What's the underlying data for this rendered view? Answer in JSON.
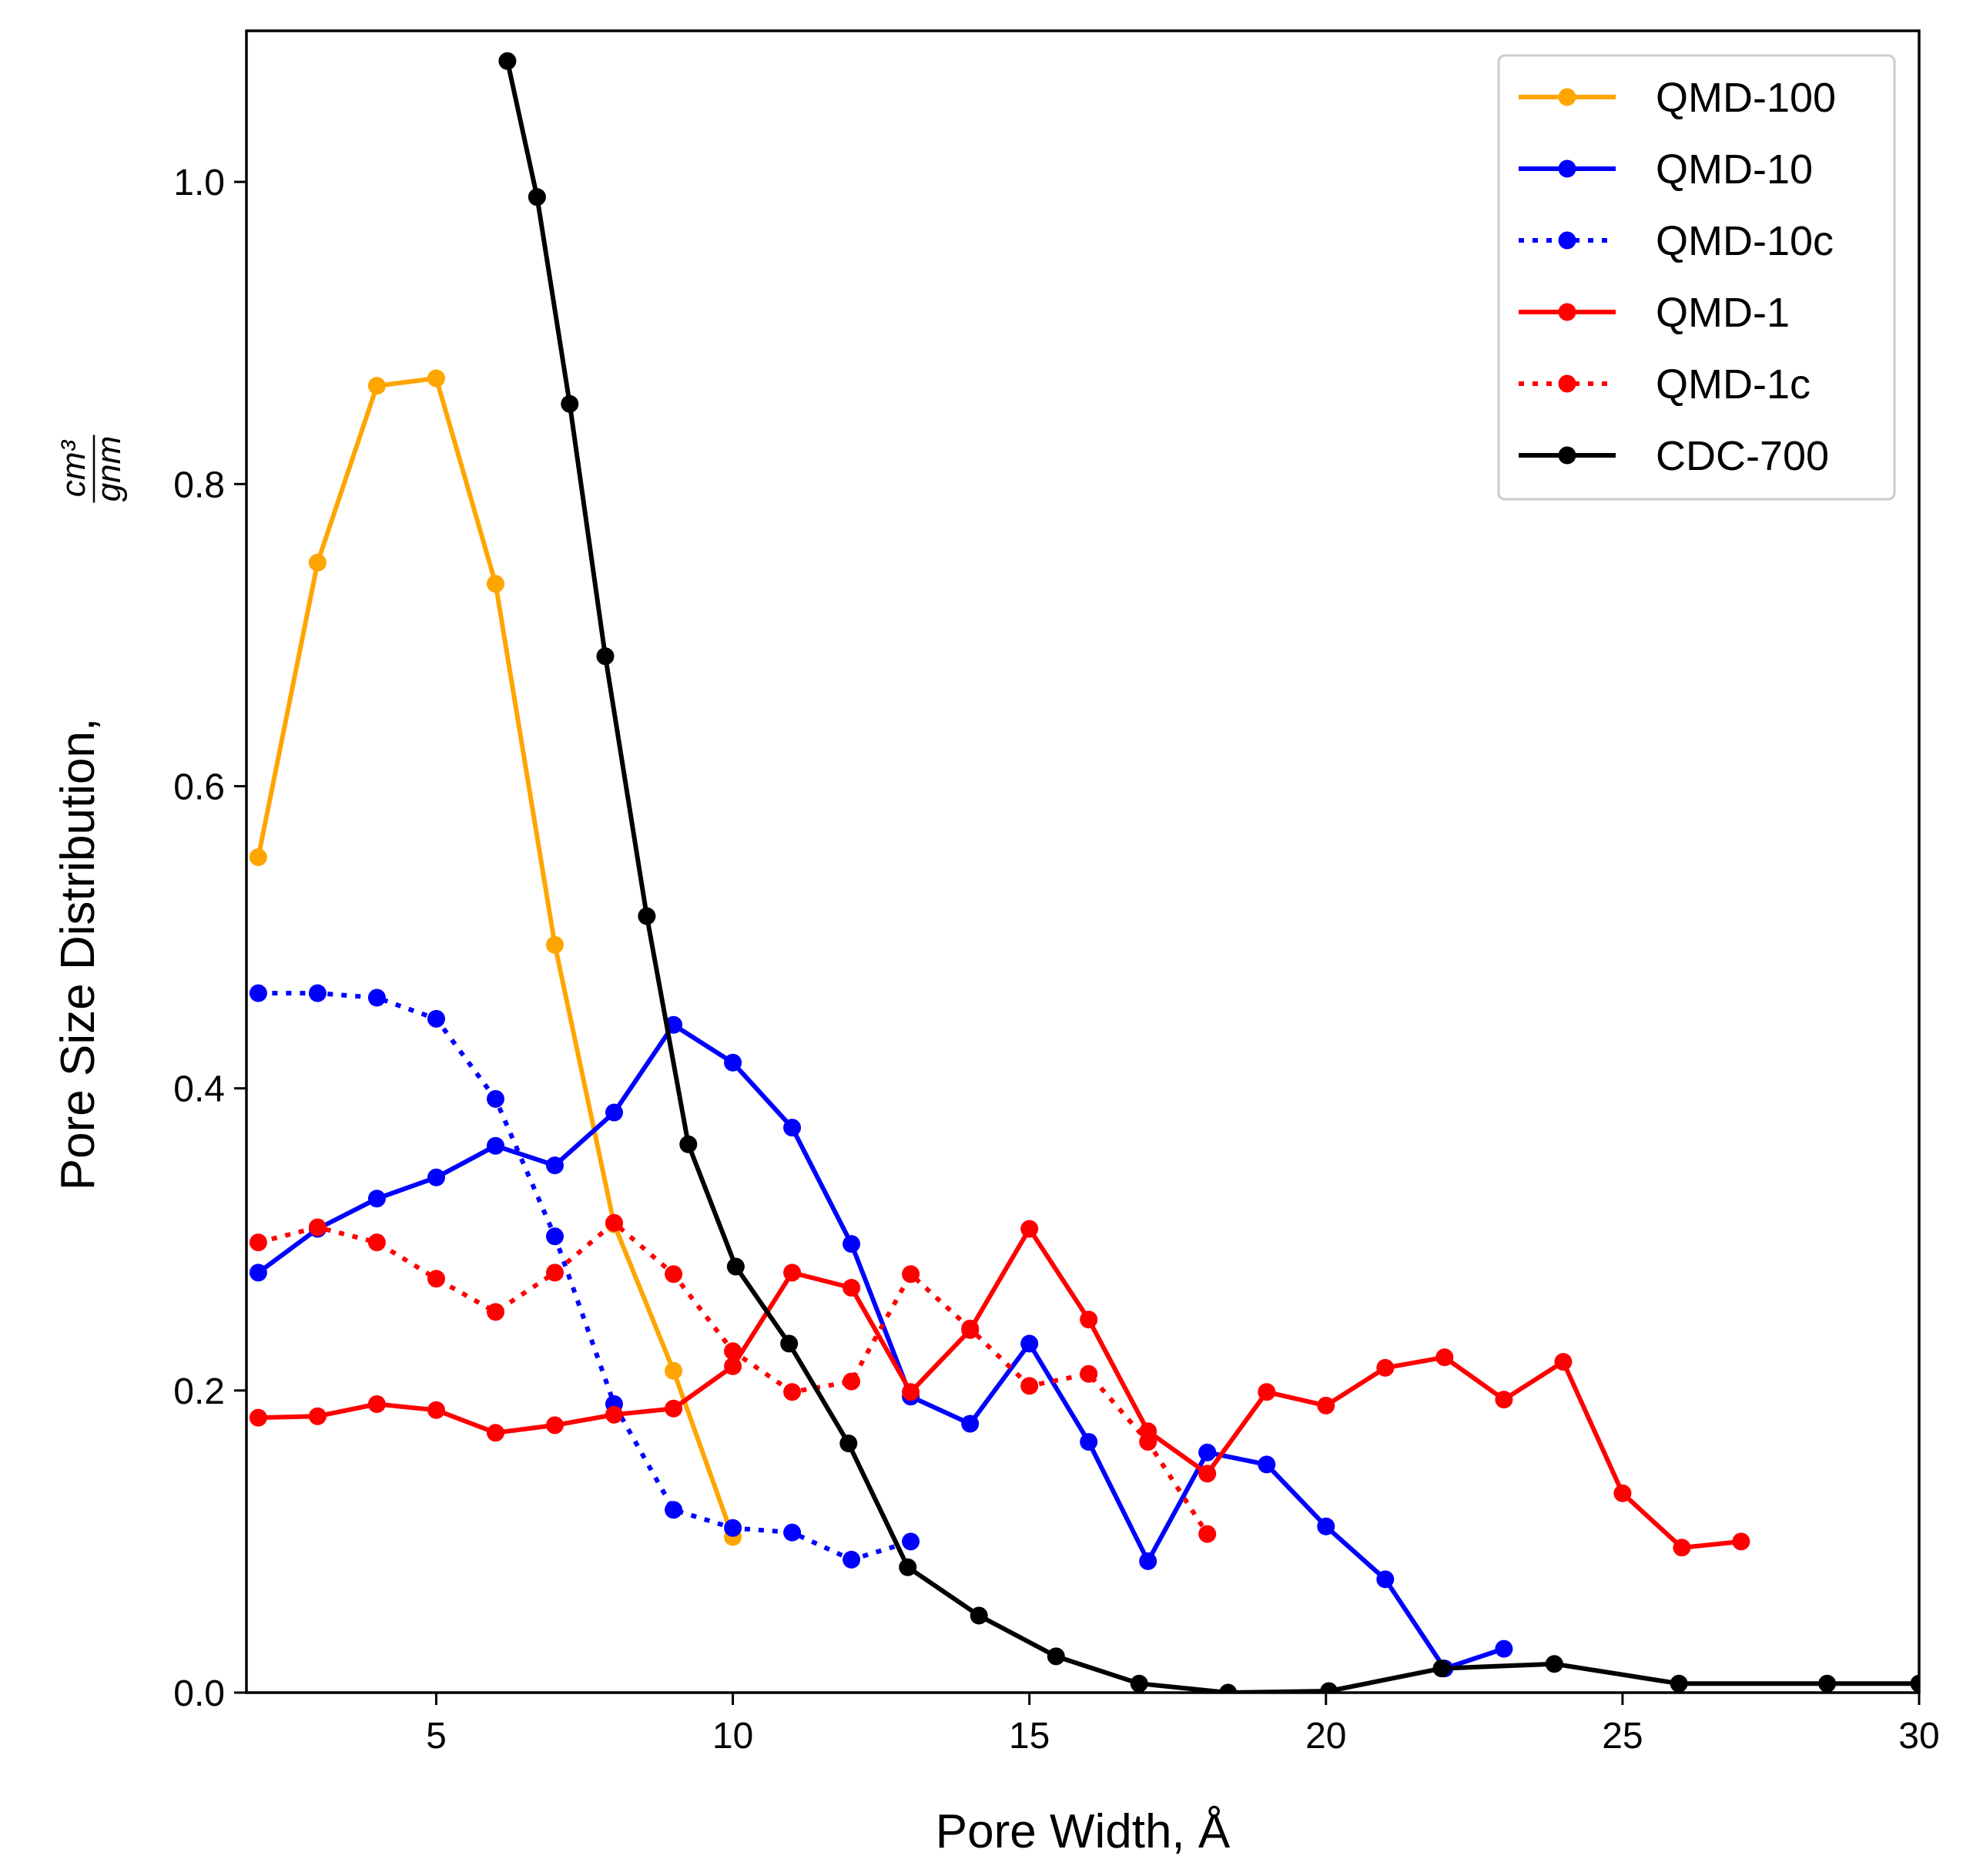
{
  "chart_data": {
    "type": "line",
    "xlabel": "Pore Width, Å",
    "ylabel": "Pore Size Distribution,",
    "ylabel_unit": {
      "numerator": "cm³",
      "denominator": "gnm"
    },
    "xlim": [
      1.8,
      30
    ],
    "ylim": [
      0,
      1.1
    ],
    "xticks": [
      5,
      10,
      15,
      20,
      25,
      30
    ],
    "yticks": [
      0.0,
      0.2,
      0.4,
      0.6,
      0.8,
      1.0
    ],
    "legend_position": "top-right",
    "series": [
      {
        "name": "QMD-100",
        "color": "#FFA500",
        "style": "solid",
        "x": [
          2,
          3,
          4,
          5,
          6,
          7,
          8,
          9,
          10
        ],
        "y": [
          0.553,
          0.748,
          0.865,
          0.87,
          0.734,
          0.495,
          0.31,
          0.213,
          0.103
        ]
      },
      {
        "name": "QMD-10",
        "color": "#0000FF",
        "style": "solid",
        "x": [
          2,
          3,
          4,
          5,
          6,
          7,
          8,
          9,
          10,
          11,
          12,
          13,
          14,
          15,
          16,
          17,
          18,
          19,
          20,
          21,
          22,
          23
        ],
        "y": [
          0.278,
          0.307,
          0.327,
          0.341,
          0.362,
          0.349,
          0.384,
          0.442,
          0.417,
          0.374,
          0.297,
          0.196,
          0.178,
          0.231,
          0.166,
          0.087,
          0.159,
          0.151,
          0.11,
          0.075,
          0.016,
          0.029
        ]
      },
      {
        "name": "QMD-10c",
        "color": "#0000FF",
        "style": "dotted",
        "x": [
          2,
          3,
          4,
          5,
          6,
          7,
          8,
          9,
          10,
          11,
          12,
          13
        ],
        "y": [
          0.463,
          0.463,
          0.46,
          0.446,
          0.393,
          0.302,
          0.191,
          0.121,
          0.109,
          0.106,
          0.088,
          0.1
        ]
      },
      {
        "name": "QMD-1",
        "color": "#FF0000",
        "style": "solid",
        "x": [
          2,
          3,
          4,
          5,
          6,
          7,
          8,
          9,
          10,
          11,
          12,
          13,
          14,
          15,
          16,
          17,
          18,
          19,
          20,
          21,
          22,
          23,
          24,
          25,
          26,
          27
        ],
        "y": [
          0.182,
          0.183,
          0.191,
          0.187,
          0.172,
          0.177,
          0.184,
          0.188,
          0.216,
          0.278,
          0.268,
          0.199,
          0.24,
          0.307,
          0.247,
          0.173,
          0.145,
          0.199,
          0.19,
          0.215,
          0.222,
          0.194,
          0.219,
          0.132,
          0.096,
          0.1
        ]
      },
      {
        "name": "QMD-1c",
        "color": "#FF0000",
        "style": "dotted",
        "x": [
          2,
          3,
          4,
          5,
          6,
          7,
          8,
          9,
          10,
          11,
          12,
          13,
          14,
          15,
          16,
          17,
          18
        ],
        "y": [
          0.298,
          0.308,
          0.298,
          0.274,
          0.252,
          0.278,
          0.311,
          0.277,
          0.226,
          0.199,
          0.206,
          0.277,
          0.241,
          0.203,
          0.211,
          0.166,
          0.105
        ]
      },
      {
        "name": "CDC-700",
        "color": "#000000",
        "style": "solid",
        "x": [
          6.2,
          6.7,
          7.25,
          7.85,
          8.55,
          9.25,
          10.05,
          10.95,
          11.95,
          12.95,
          14.15,
          15.45,
          16.85,
          18.35,
          20.05,
          21.95,
          23.85,
          25.95,
          28.45,
          30
        ],
        "y": [
          1.08,
          0.99,
          0.853,
          0.686,
          0.514,
          0.363,
          0.282,
          0.231,
          0.165,
          0.083,
          0.051,
          0.024,
          0.006,
          0.0,
          0.001,
          0.016,
          0.019,
          0.006,
          0.006,
          0.006
        ]
      }
    ]
  }
}
